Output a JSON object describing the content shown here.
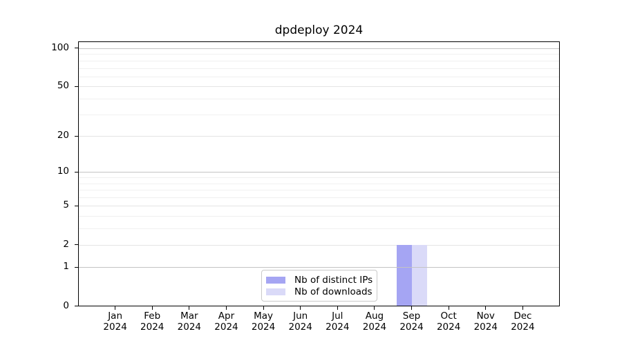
{
  "figure": {
    "title": "dpdeploy 2024"
  },
  "legend": {
    "position": "lower center",
    "items": [
      {
        "label": "Nb of distinct IPs",
        "color": "#a5a5f3"
      },
      {
        "label": "Nb of downloads",
        "color": "#dadaf8"
      }
    ]
  },
  "chart_data": {
    "type": "bar",
    "title": "dpdeploy 2024",
    "categories": [
      "Jan 2024",
      "Feb 2024",
      "Mar 2024",
      "Apr 2024",
      "May 2024",
      "Jun 2024",
      "Jul 2024",
      "Aug 2024",
      "Sep 2024",
      "Oct 2024",
      "Nov 2024",
      "Dec 2024"
    ],
    "series": [
      {
        "name": "Nb of distinct IPs",
        "color": "#a5a5f3",
        "values": [
          0,
          0,
          0,
          0,
          0,
          0,
          0,
          0,
          2,
          0,
          0,
          0
        ]
      },
      {
        "name": "Nb of downloads",
        "color": "#dadaf8",
        "values": [
          0,
          0,
          0,
          0,
          0,
          0,
          0,
          0,
          2,
          0,
          0,
          0
        ]
      }
    ],
    "xlabel": "",
    "ylabel": "",
    "yscale": "log10(1+y)",
    "ylim": [
      0,
      113
    ],
    "y_ticks_major": [
      0,
      1,
      2,
      5,
      10,
      20,
      50,
      100
    ],
    "y_ticks_minor": [
      3,
      4,
      6,
      7,
      8,
      9,
      30,
      40,
      60,
      70,
      80,
      90
    ],
    "y_decade_lines": [
      1,
      10,
      100
    ],
    "grid": "horizontal-both",
    "legend_position": "lower center"
  }
}
